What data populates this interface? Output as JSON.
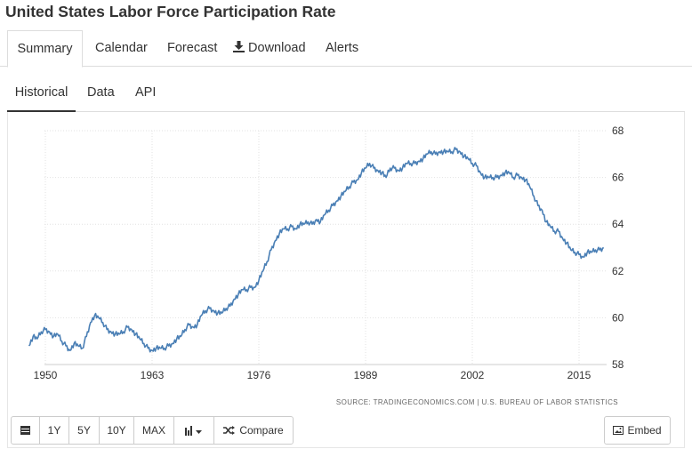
{
  "page": {
    "title": "United States Labor Force Participation Rate"
  },
  "tabs": [
    {
      "label": "Summary"
    },
    {
      "label": "Calendar"
    },
    {
      "label": "Forecast"
    },
    {
      "label": "Download",
      "icon": "download-icon"
    },
    {
      "label": "Alerts"
    }
  ],
  "subtabs": [
    {
      "label": "Historical"
    },
    {
      "label": "Data"
    },
    {
      "label": "API"
    }
  ],
  "buttons": {
    "table_icon": "table-icon",
    "range": [
      "1Y",
      "5Y",
      "10Y",
      "MAX"
    ],
    "chart_type_icon": "bar-chart-icon",
    "compare": "Compare",
    "embed": "Embed"
  },
  "chart_data": {
    "type": "line",
    "title": "United States Labor Force Participation Rate",
    "xlabel": "",
    "ylabel": "",
    "xlim": [
      1948,
      2019
    ],
    "ylim": [
      58,
      68
    ],
    "x_ticks": [
      "1950",
      "1963",
      "1976",
      "1989",
      "2002",
      "2015"
    ],
    "y_ticks": [
      "68",
      "66",
      "64",
      "62",
      "60",
      "58"
    ],
    "source": "SOURCE: TRADINGECONOMICS.COM | U.S. BUREAU OF LABOR STATISTICS",
    "grid": true,
    "series": [
      {
        "name": "Labor Force Participation Rate",
        "color": "#4a7fb5",
        "x": [
          1948.0,
          1948.5,
          1949.0,
          1949.5,
          1950.0,
          1950.5,
          1951.0,
          1951.5,
          1952.0,
          1952.5,
          1953.0,
          1953.5,
          1954.0,
          1954.5,
          1955.0,
          1955.5,
          1956.0,
          1956.5,
          1957.0,
          1957.5,
          1958.0,
          1958.5,
          1959.0,
          1959.5,
          1960.0,
          1960.5,
          1961.0,
          1961.5,
          1962.0,
          1962.5,
          1963.0,
          1963.5,
          1964.0,
          1964.5,
          1965.0,
          1965.5,
          1966.0,
          1966.5,
          1967.0,
          1967.5,
          1968.0,
          1968.5,
          1969.0,
          1969.5,
          1970.0,
          1970.5,
          1971.0,
          1971.5,
          1972.0,
          1972.5,
          1973.0,
          1973.5,
          1974.0,
          1974.5,
          1975.0,
          1975.5,
          1976.0,
          1976.5,
          1977.0,
          1977.5,
          1978.0,
          1978.5,
          1979.0,
          1979.5,
          1980.0,
          1980.5,
          1981.0,
          1981.5,
          1982.0,
          1982.5,
          1983.0,
          1983.5,
          1984.0,
          1984.5,
          1985.0,
          1985.5,
          1986.0,
          1986.5,
          1987.0,
          1987.5,
          1988.0,
          1988.5,
          1989.0,
          1989.5,
          1990.0,
          1990.5,
          1991.0,
          1991.5,
          1992.0,
          1992.5,
          1993.0,
          1993.5,
          1994.0,
          1994.5,
          1995.0,
          1995.5,
          1996.0,
          1996.5,
          1997.0,
          1997.5,
          1998.0,
          1998.5,
          1999.0,
          1999.5,
          2000.0,
          2000.5,
          2001.0,
          2001.5,
          2002.0,
          2002.5,
          2003.0,
          2003.5,
          2004.0,
          2004.5,
          2005.0,
          2005.5,
          2006.0,
          2006.5,
          2007.0,
          2007.5,
          2008.0,
          2008.5,
          2009.0,
          2009.5,
          2010.0,
          2010.5,
          2011.0,
          2011.5,
          2012.0,
          2012.5,
          2013.0,
          2013.5,
          2014.0,
          2014.5,
          2015.0,
          2015.5,
          2016.0,
          2016.5,
          2017.0,
          2017.5,
          2018.0
        ],
        "y": [
          58.8,
          59.2,
          59.1,
          59.4,
          59.5,
          59.4,
          59.2,
          59.3,
          59.0,
          58.8,
          58.6,
          58.9,
          58.8,
          58.7,
          59.2,
          59.8,
          60.1,
          60.0,
          59.8,
          59.5,
          59.4,
          59.3,
          59.3,
          59.4,
          59.6,
          59.5,
          59.3,
          59.1,
          58.9,
          58.7,
          58.6,
          58.7,
          58.7,
          58.7,
          58.8,
          58.9,
          59.1,
          59.2,
          59.5,
          59.7,
          59.6,
          59.7,
          60.1,
          60.3,
          60.4,
          60.3,
          60.2,
          60.2,
          60.4,
          60.5,
          60.8,
          61.0,
          61.2,
          61.2,
          61.3,
          61.3,
          61.6,
          62.0,
          62.4,
          62.9,
          63.3,
          63.6,
          63.8,
          63.8,
          63.9,
          63.8,
          64.0,
          64.0,
          64.1,
          64.0,
          64.2,
          64.1,
          64.4,
          64.6,
          64.8,
          65.0,
          65.2,
          65.4,
          65.6,
          65.8,
          65.9,
          66.2,
          66.4,
          66.6,
          66.4,
          66.3,
          66.2,
          66.0,
          66.4,
          66.4,
          66.3,
          66.4,
          66.6,
          66.6,
          66.6,
          66.7,
          66.8,
          67.0,
          67.1,
          67.0,
          67.1,
          67.1,
          67.1,
          67.1,
          67.2,
          67.1,
          66.9,
          66.8,
          66.6,
          66.5,
          66.2,
          66.0,
          66.0,
          66.0,
          66.0,
          66.1,
          66.2,
          66.2,
          66.0,
          66.1,
          66.0,
          65.9,
          65.6,
          65.2,
          64.8,
          64.6,
          64.1,
          63.9,
          63.7,
          63.7,
          63.4,
          63.2,
          62.9,
          62.8,
          62.7,
          62.6,
          62.8,
          62.8,
          62.9,
          62.9,
          63.0
        ]
      }
    ]
  }
}
